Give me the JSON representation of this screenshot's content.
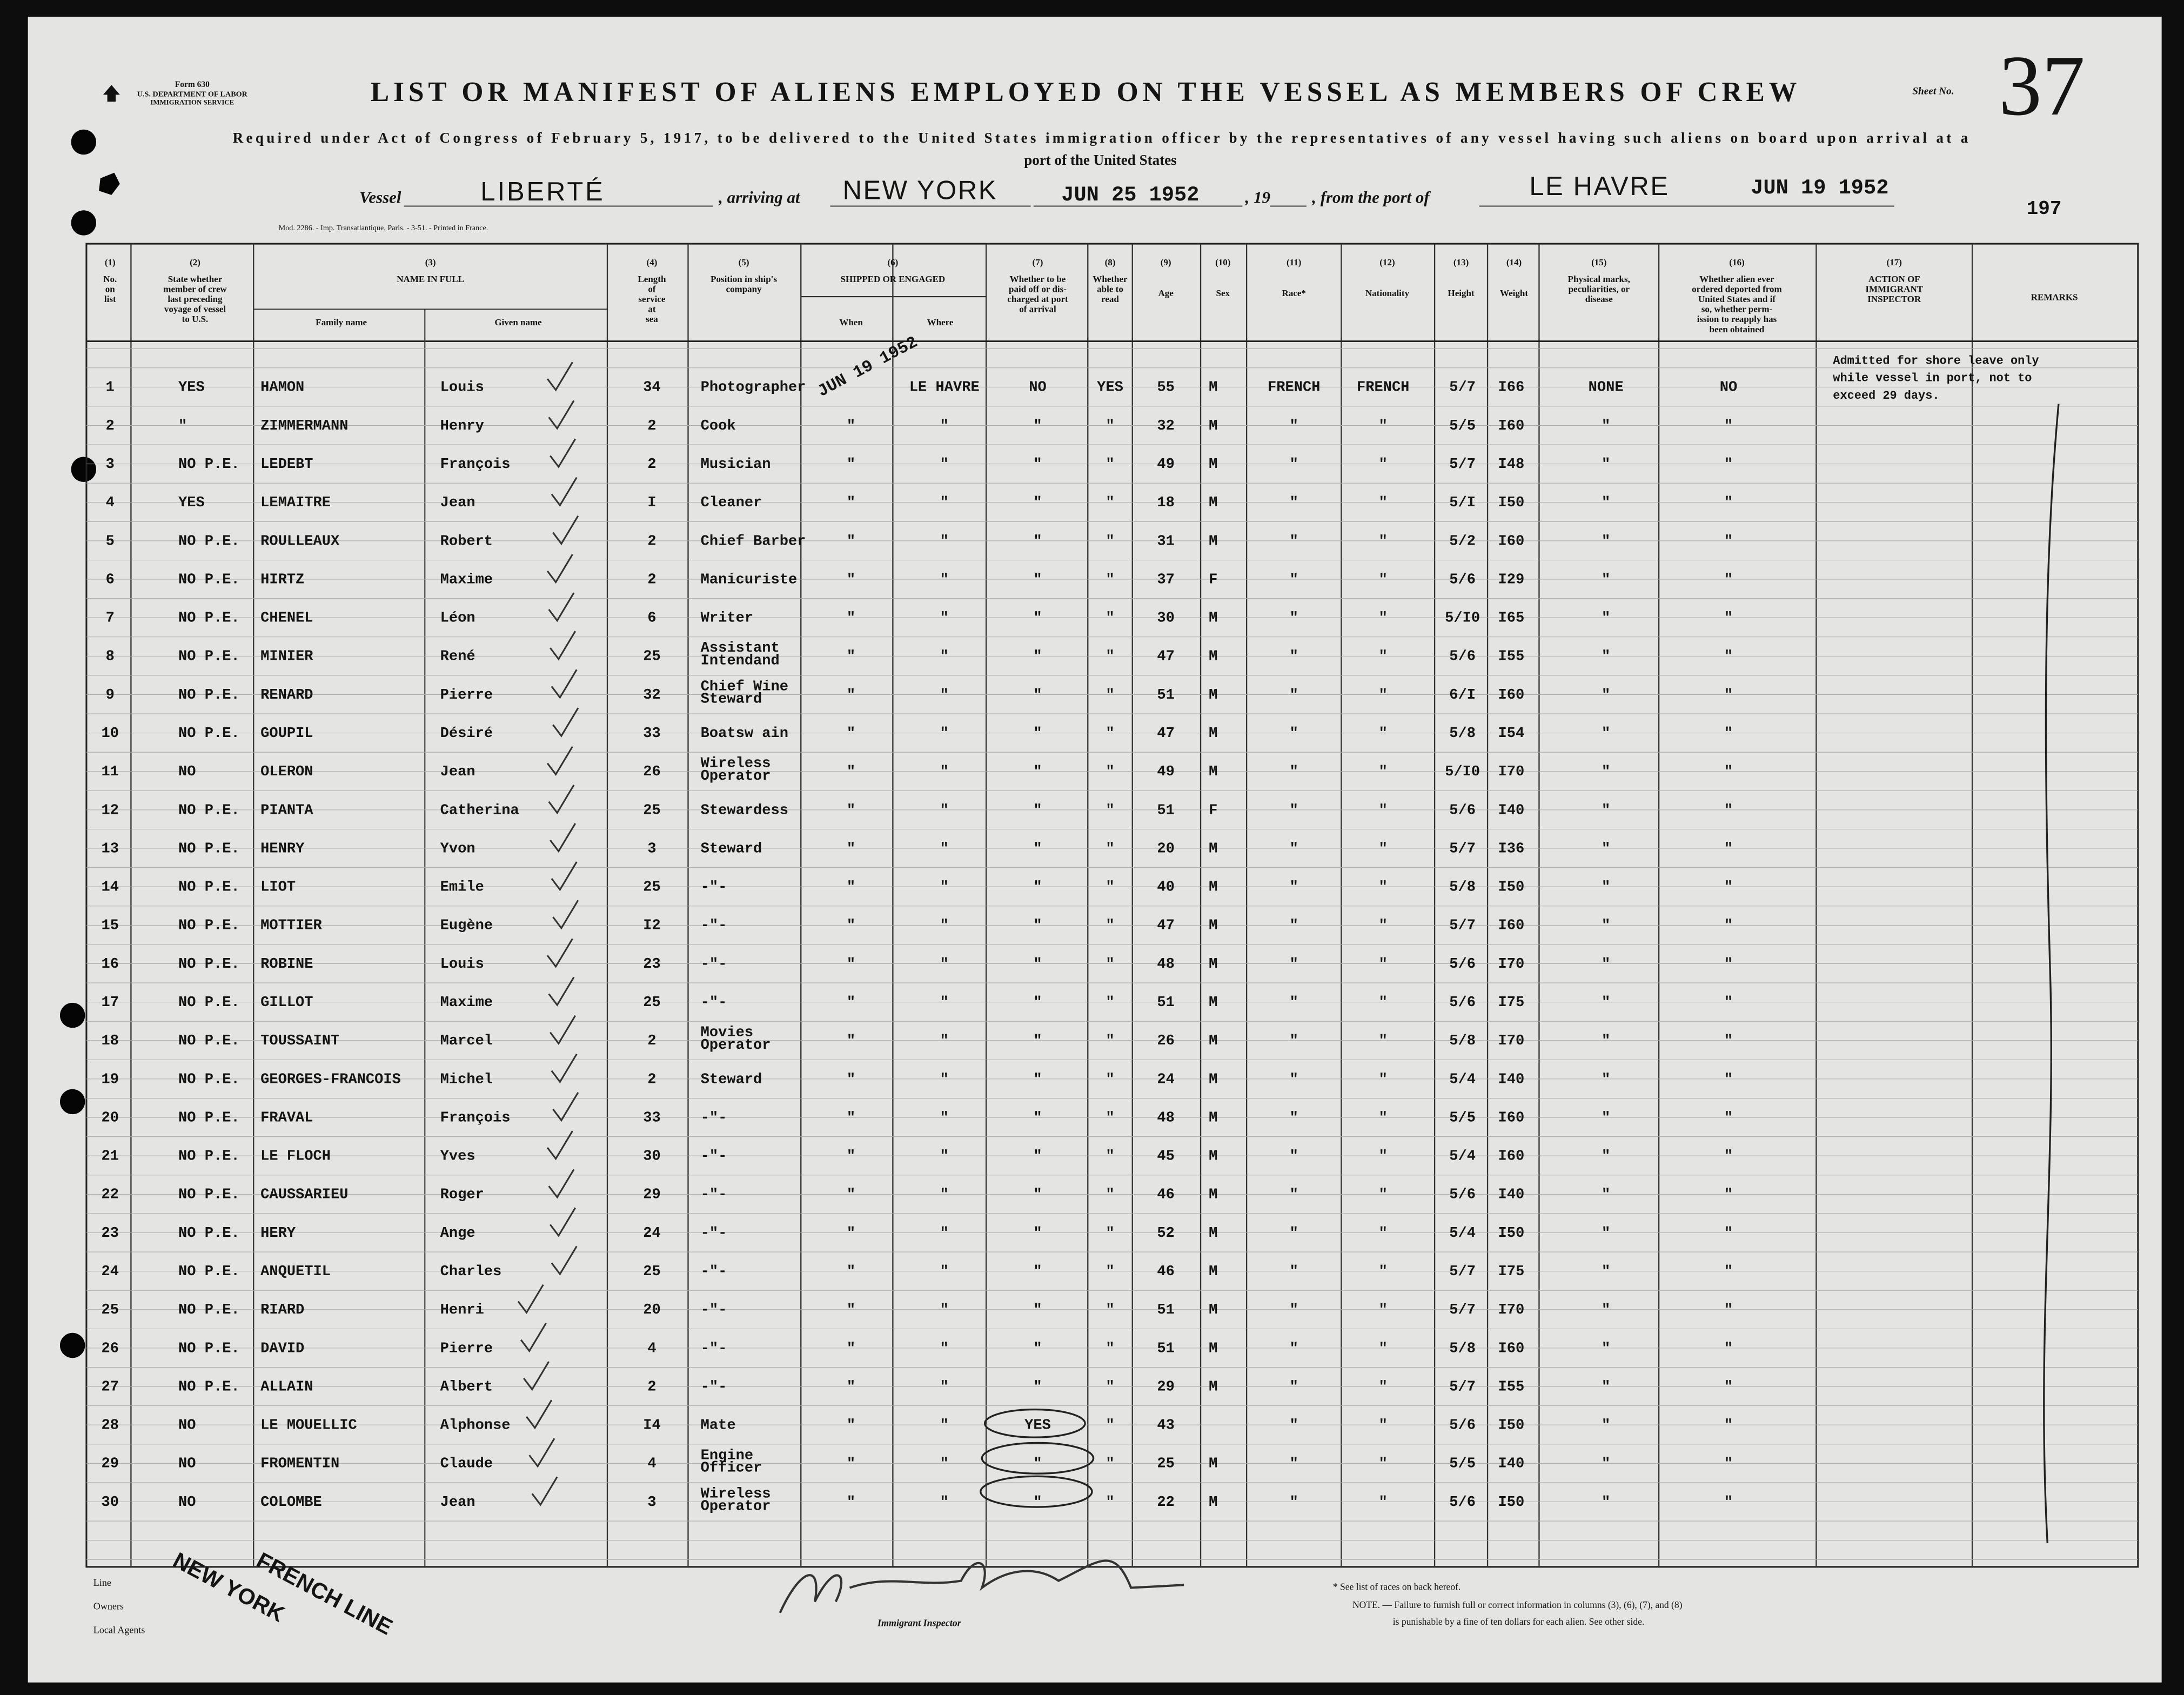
{
  "header": {
    "form": [
      "Form 630",
      "U.S. DEPARTMENT OF LABOR",
      "IMMIGRATION SERVICE"
    ],
    "title": "LIST OR MANIFEST OF ALIENS EMPLOYED ON THE VESSEL AS MEMBERS OF CREW",
    "subtitle": [
      "Required under Act of Congress of February 5, 1917, to be delivered to the United States immigration officer by the representatives of any vessel having such aliens on board upon arrival at a",
      "port of the United States"
    ],
    "sheet_label": "Sheet No.",
    "sheet_number": "37",
    "vessel_label": "Vessel",
    "vessel": "LIBERTÉ",
    "arriving_label": ", arriving at",
    "arriving": "NEW YORK",
    "arrival_date": "JUN 25 1952",
    "year_label": ", 19",
    "from_label": ", from the port of",
    "from_port": "LE HAVRE",
    "departure_date": "JUN 19 1952",
    "page_ref": "197",
    "printer": "Mod. 2286. - Imp. Transatlantique, Paris. - 3-51. - Printed in France."
  },
  "table": {
    "columns": [
      {
        "number": "(1)",
        "lines": [
          "No.",
          "on",
          "list"
        ]
      },
      {
        "number": "(2)",
        "lines": [
          "State whether",
          "member of crew",
          "last preceding",
          "voyage of vessel",
          "to U.S."
        ]
      },
      {
        "number": "(3)",
        "lines": [
          "NAME IN FULL"
        ],
        "sub": [
          "Family name",
          "Given name"
        ]
      },
      {
        "number": "(4)",
        "lines": [
          "Length",
          "of",
          "service",
          "at",
          "sea"
        ]
      },
      {
        "number": "(5)",
        "lines": [
          "Position in ship's",
          "company"
        ]
      },
      {
        "number": "(6)",
        "lines": [
          "SHIPPED OR ENGAGED"
        ],
        "sub": [
          "When",
          "Where"
        ]
      },
      {
        "number": "(7)",
        "lines": [
          "Whether to be",
          "paid off or dis-",
          "charged at port",
          "of arrival"
        ]
      },
      {
        "number": "(8)",
        "lines": [
          "Whether",
          "able to",
          "read"
        ]
      },
      {
        "number": "(9)",
        "lines": [
          "Age"
        ]
      },
      {
        "number": "(10)",
        "lines": [
          "Sex"
        ]
      },
      {
        "number": "(11)",
        "lines": [
          "Race*"
        ]
      },
      {
        "number": "(12)",
        "lines": [
          "Nationality"
        ]
      },
      {
        "number": "(13)",
        "lines": [
          "Height"
        ]
      },
      {
        "number": "(14)",
        "lines": [
          "Weight"
        ]
      },
      {
        "number": "(15)",
        "lines": [
          "Physical marks,",
          "peculiarities, or",
          "disease"
        ]
      },
      {
        "number": "(16)",
        "lines": [
          "Whether alien ever",
          "ordered deported from",
          "United States and if",
          "so, whether perm-",
          "ission to reapply has",
          "been obtained"
        ]
      },
      {
        "number": "(17)",
        "lines": [
          "ACTION OF",
          "IMMIGRANT",
          "INSPECTOR"
        ]
      },
      {
        "lines": [
          "REMARKS"
        ]
      }
    ],
    "shipped_stamp": "JUN 19 1952",
    "action": [
      "Admitted for shore leave only",
      "while vessel in port, not to",
      "exceed 29 days."
    ],
    "rows": [
      [
        1,
        "YES",
        "HAMON",
        "Louis",
        34,
        "Photographer",
        null,
        "LE HAVRE",
        "NO",
        "YES",
        55,
        "M",
        "FRENCH",
        "FRENCH",
        "5/7",
        "I66",
        "NONE",
        "NO"
      ],
      [
        2,
        "\"",
        "ZIMMERMANN",
        "Henry",
        2,
        "Cook",
        "\"",
        "\"",
        "\"",
        "\"",
        32,
        "M",
        "\"",
        "\"",
        "5/5",
        "I60",
        "\"",
        "\""
      ],
      [
        3,
        "NO P.E.",
        "LEDEBT",
        "François",
        2,
        "Musician",
        "\"",
        "\"",
        "\"",
        "\"",
        49,
        "M",
        "\"",
        "\"",
        "5/7",
        "I48",
        "\"",
        "\""
      ],
      [
        4,
        "YES",
        "LEMAITRE",
        "Jean",
        "I",
        "Cleaner",
        "\"",
        "\"",
        "\"",
        "\"",
        18,
        "M",
        "\"",
        "\"",
        "5/I",
        "I50",
        "\"",
        "\""
      ],
      [
        5,
        "NO P.E.",
        "ROULLEAUX",
        "Robert",
        2,
        "Chief Barber",
        "\"",
        "\"",
        "\"",
        "\"",
        31,
        "M",
        "\"",
        "\"",
        "5/2",
        "I60",
        "\"",
        "\""
      ],
      [
        6,
        "NO P.E.",
        "HIRTZ",
        "Maxime",
        2,
        "Manicuriste",
        "\"",
        "\"",
        "\"",
        "\"",
        37,
        "F",
        "\"",
        "\"",
        "5/6",
        "I29",
        "\"",
        "\""
      ],
      [
        7,
        "NO P.E.",
        "CHENEL",
        "Léon",
        6,
        "Writer",
        "\"",
        "\"",
        "\"",
        "\"",
        30,
        "M",
        "\"",
        "\"",
        "5/I0",
        "I65",
        "\"",
        "\""
      ],
      [
        8,
        "NO P.E.",
        "MINIER",
        "René",
        25,
        [
          "Assistant",
          "Intendand"
        ],
        "\"",
        "\"",
        "\"",
        "\"",
        47,
        "M",
        "\"",
        "\"",
        "5/6",
        "I55",
        "\"",
        "\""
      ],
      [
        9,
        "NO P.E.",
        "RENARD",
        "Pierre",
        32,
        [
          "Chief Wine",
          "Steward"
        ],
        "\"",
        "\"",
        "\"",
        "\"",
        51,
        "M",
        "\"",
        "\"",
        "6/I",
        "I60",
        "\"",
        "\""
      ],
      [
        10,
        "NO P.E.",
        "GOUPIL",
        "Désiré",
        33,
        "Boatsw ain",
        "\"",
        "\"",
        "\"",
        "\"",
        47,
        "M",
        "\"",
        "\"",
        "5/8",
        "I54",
        "\"",
        "\""
      ],
      [
        11,
        "NO",
        "OLERON",
        "Jean",
        26,
        [
          "Wireless",
          "Operator"
        ],
        "\"",
        "\"",
        "\"",
        "\"",
        49,
        "M",
        "\"",
        "\"",
        "5/I0",
        "I70",
        "\"",
        "\""
      ],
      [
        12,
        "NO P.E.",
        "PIANTA",
        "Catherina",
        25,
        "Stewardess",
        "\"",
        "\"",
        "\"",
        "\"",
        51,
        "F",
        "\"",
        "\"",
        "5/6",
        "I40",
        "\"",
        "\""
      ],
      [
        13,
        "NO P.E.",
        "HENRY",
        "Yvon",
        3,
        "Steward",
        "\"",
        "\"",
        "\"",
        "\"",
        20,
        "M",
        "\"",
        "\"",
        "5/7",
        "I36",
        "\"",
        "\""
      ],
      [
        14,
        "NO P.E.",
        "LIOT",
        "Emile",
        25,
        "-\"-",
        "\"",
        "\"",
        "\"",
        "\"",
        40,
        "M",
        "\"",
        "\"",
        "5/8",
        "I50",
        "\"",
        "\""
      ],
      [
        15,
        "NO P.E.",
        "MOTTIER",
        "Eugène",
        "I2",
        "-\"-",
        "\"",
        "\"",
        "\"",
        "\"",
        47,
        "M",
        "\"",
        "\"",
        "5/7",
        "I60",
        "\"",
        "\""
      ],
      [
        16,
        "NO P.E.",
        "ROBINE",
        "Louis",
        23,
        "-\"-",
        "\"",
        "\"",
        "\"",
        "\"",
        48,
        "M",
        "\"",
        "\"",
        "5/6",
        "I70",
        "\"",
        "\""
      ],
      [
        17,
        "NO P.E.",
        "GILLOT",
        "Maxime",
        25,
        "-\"-",
        "\"",
        "\"",
        "\"",
        "\"",
        51,
        "M",
        "\"",
        "\"",
        "5/6",
        "I75",
        "\"",
        "\""
      ],
      [
        18,
        "NO P.E.",
        "TOUSSAINT",
        "Marcel",
        2,
        [
          "Movies",
          "Operator"
        ],
        "\"",
        "\"",
        "\"",
        "\"",
        26,
        "M",
        "\"",
        "\"",
        "5/8",
        "I70",
        "\"",
        "\""
      ],
      [
        19,
        "NO P.E.",
        "GEORGES-FRANCOIS",
        "Michel",
        2,
        "Steward",
        "\"",
        "\"",
        "\"",
        "\"",
        24,
        "M",
        "\"",
        "\"",
        "5/4",
        "I40",
        "\"",
        "\""
      ],
      [
        20,
        "NO P.E.",
        "FRAVAL",
        "François",
        33,
        "-\"-",
        "\"",
        "\"",
        "\"",
        "\"",
        48,
        "M",
        "\"",
        "\"",
        "5/5",
        "I60",
        "\"",
        "\""
      ],
      [
        21,
        "NO P.E.",
        "LE FLOCH",
        "Yves",
        30,
        "-\"-",
        "\"",
        "\"",
        "\"",
        "\"",
        45,
        "M",
        "\"",
        "\"",
        "5/4",
        "I60",
        "\"",
        "\""
      ],
      [
        22,
        "NO P.E.",
        "CAUSSARIEU",
        "Roger",
        29,
        "-\"-",
        "\"",
        "\"",
        "\"",
        "\"",
        46,
        "M",
        "\"",
        "\"",
        "5/6",
        "I40",
        "\"",
        "\""
      ],
      [
        23,
        "NO P.E.",
        "HERY",
        "Ange",
        24,
        "-\"-",
        "\"",
        "\"",
        "\"",
        "\"",
        52,
        "M",
        "\"",
        "\"",
        "5/4",
        "I50",
        "\"",
        "\""
      ],
      [
        24,
        "NO P.E.",
        "ANQUETIL",
        "Charles",
        25,
        "-\"-",
        "\"",
        "\"",
        "\"",
        "\"",
        46,
        "M",
        "\"",
        "\"",
        "5/7",
        "I75",
        "\"",
        "\""
      ],
      [
        25,
        "NO P.E.",
        "RIARD",
        "Henri",
        20,
        "-\"-",
        "\"",
        "\"",
        "\"",
        "\"",
        51,
        "M",
        "\"",
        "\"",
        "5/7",
        "I70",
        "\"",
        "\""
      ],
      [
        26,
        "NO P.E.",
        "DAVID",
        "Pierre",
        4,
        "-\"-",
        "\"",
        "\"",
        "\"",
        "\"",
        51,
        "M",
        "\"",
        "\"",
        "5/8",
        "I60",
        "\"",
        "\""
      ],
      [
        27,
        "NO P.E.",
        "ALLAIN",
        "Albert",
        2,
        "-\"-",
        "\"",
        "\"",
        "\"",
        "\"",
        29,
        "M",
        "\"",
        "\"",
        "5/7",
        "I55",
        "\"",
        "\""
      ],
      [
        28,
        "NO",
        "LE MOUELLIC",
        "Alphonse",
        "I4",
        "Mate",
        "\"",
        "\"",
        "YES",
        "\"",
        43,
        null,
        "\"",
        "\"",
        "5/6",
        "I50",
        "\"",
        "\""
      ],
      [
        29,
        "NO",
        "FROMENTIN",
        "Claude",
        4,
        [
          "Engine",
          "Officer"
        ],
        "\"",
        "\"",
        "\"",
        "\"",
        25,
        "M",
        "\"",
        "\"",
        "5/5",
        "I40",
        "\"",
        "\""
      ],
      [
        30,
        "NO",
        "COLOMBE",
        "Jean",
        3,
        [
          "Wireless",
          "Operator"
        ],
        "\"",
        "\"",
        "\"",
        "\"",
        22,
        "M",
        "\"",
        "\"",
        "5/6",
        "I50",
        "\"",
        "\""
      ]
    ]
  },
  "footer": {
    "labels": [
      "Line",
      "Owners",
      "Local Agents"
    ],
    "stamp": [
      "FRENCH LINE",
      "NEW YORK"
    ],
    "inspector": "Immigrant Inspector",
    "notes": [
      "* See list of races on back hereof.",
      "NOTE. — Failure to furnish full or correct information in columns (3), (6), (7), and (8)",
      "is punishable by a fine of ten dollars for each alien. See other side."
    ]
  }
}
